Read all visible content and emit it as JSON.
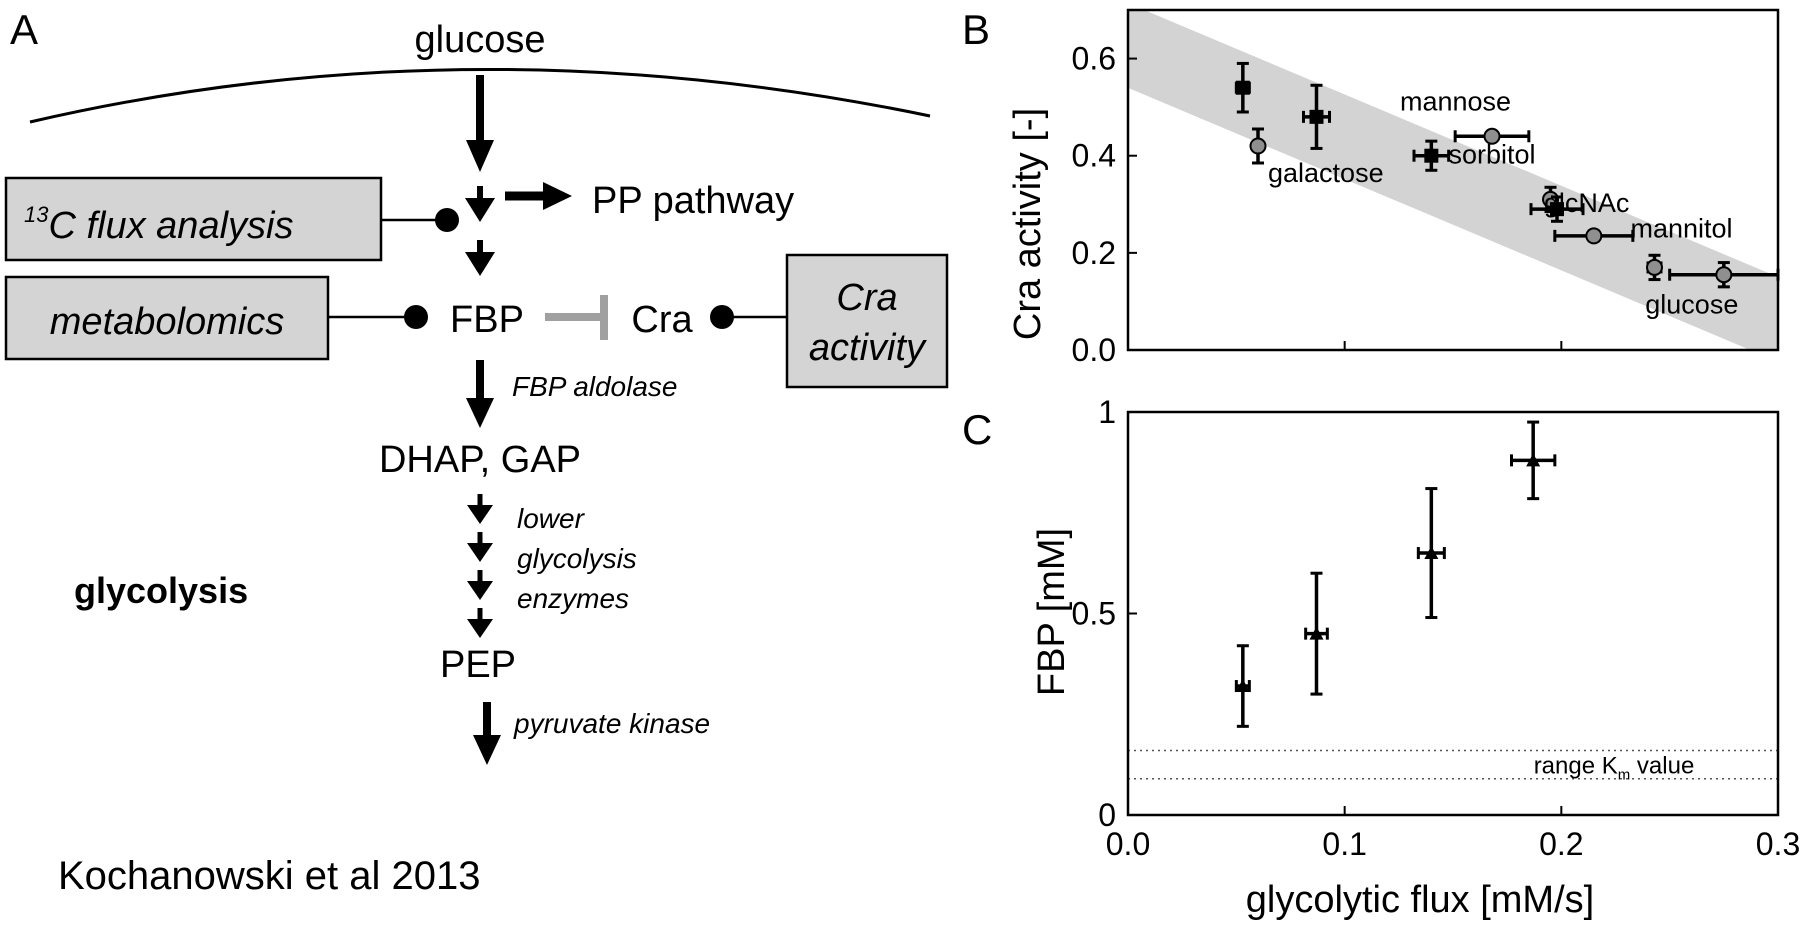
{
  "panel_letters": {
    "a": "A",
    "b": "B",
    "c": "C"
  },
  "pathway": {
    "glucose": "glucose",
    "pp_pathway": "PP pathway",
    "c13_sup": "13",
    "c13_rest": "C flux analysis",
    "metabolomics": "metabolomics",
    "fbp": "FBP",
    "cra": "Cra",
    "cra_activity_line1": "Cra",
    "cra_activity_line2": "activity",
    "fbp_aldolase": "FBP aldolase",
    "dhap_gap": "DHAP, GAP",
    "lower_1": "lower",
    "lower_2": "glycolysis",
    "lower_3": "enzymes",
    "glycolysis": "glycolysis",
    "pep": "PEP",
    "pyruvate_kinase": "pyruvate kinase"
  },
  "citation": "Kochanowski et al 2013",
  "colors": {
    "box_fill": "#d4d4d4",
    "band": "#d3d3d3",
    "inhibit": "#a0a0a0",
    "marker_grey": "#8f8f8f"
  },
  "chart_data": [
    {
      "panel": "B",
      "type": "scatter",
      "ylabel": "Cra activity  [-]",
      "xlim": [
        0,
        0.3
      ],
      "ylim": [
        0,
        0.7
      ],
      "yticks": [
        "0.0",
        "0.2",
        "0.4",
        "0.6"
      ],
      "grid": false,
      "trend_band": {
        "from": [
          0.0,
          0.62
        ],
        "to": [
          0.3,
          0.07
        ]
      },
      "points": [
        {
          "label": "",
          "x": 0.053,
          "y": 0.54,
          "xerr": 0.003,
          "yerr": 0.05,
          "marker": "black-square"
        },
        {
          "label": "galactose",
          "x": 0.06,
          "y": 0.42,
          "xerr": 0.0,
          "yerr": 0.035,
          "marker": "grey-circle"
        },
        {
          "label": "",
          "x": 0.087,
          "y": 0.48,
          "xerr": 0.006,
          "yerr": 0.065,
          "marker": "black-square"
        },
        {
          "label": "",
          "x": 0.14,
          "y": 0.4,
          "xerr": 0.008,
          "yerr": 0.03,
          "marker": "black-square"
        },
        {
          "label": "mannose",
          "x": 0.168,
          "y": 0.44,
          "xerr": 0.017,
          "yerr": 0.005,
          "marker": "grey-circle"
        },
        {
          "label": "sorbitol",
          "x": 0.195,
          "y": 0.31,
          "xerr": 0.0,
          "yerr": 0.025,
          "marker": "grey-circle"
        },
        {
          "label": "",
          "x": 0.198,
          "y": 0.29,
          "xerr": 0.012,
          "yerr": 0.025,
          "marker": "black-square"
        },
        {
          "label": "glcNAc",
          "x": 0.215,
          "y": 0.235,
          "xerr": 0.018,
          "yerr": 0.01,
          "marker": "grey-circle"
        },
        {
          "label": "mannitol",
          "x": 0.243,
          "y": 0.17,
          "xerr": 0.003,
          "yerr": 0.025,
          "marker": "grey-circle"
        },
        {
          "label": "glucose",
          "x": 0.275,
          "y": 0.155,
          "xerr": 0.025,
          "yerr": 0.025,
          "marker": "grey-circle"
        }
      ]
    },
    {
      "panel": "C",
      "type": "scatter",
      "xlabel": "glycolytic flux  [mM/s]",
      "ylabel": "FBP [mM]",
      "xlim": [
        0,
        0.3
      ],
      "ylim": [
        0,
        1.0
      ],
      "xticks": [
        "0.0",
        "0.1",
        "0.2",
        "0.3"
      ],
      "yticks": [
        "0",
        "0.5",
        "1"
      ],
      "grid": false,
      "km_range": {
        "low": 0.09,
        "high": 0.16,
        "label_main": "range K",
        "label_sub": "m",
        "label_tail": " value"
      },
      "points": [
        {
          "x": 0.053,
          "y": 0.32,
          "xerr": 0.003,
          "yerr": 0.1
        },
        {
          "x": 0.087,
          "y": 0.45,
          "xerr": 0.005,
          "yerr": 0.15
        },
        {
          "x": 0.14,
          "y": 0.65,
          "xerr": 0.006,
          "yerr": 0.16
        },
        {
          "x": 0.187,
          "y": 0.88,
          "xerr": 0.01,
          "yerr": 0.095
        }
      ]
    }
  ]
}
